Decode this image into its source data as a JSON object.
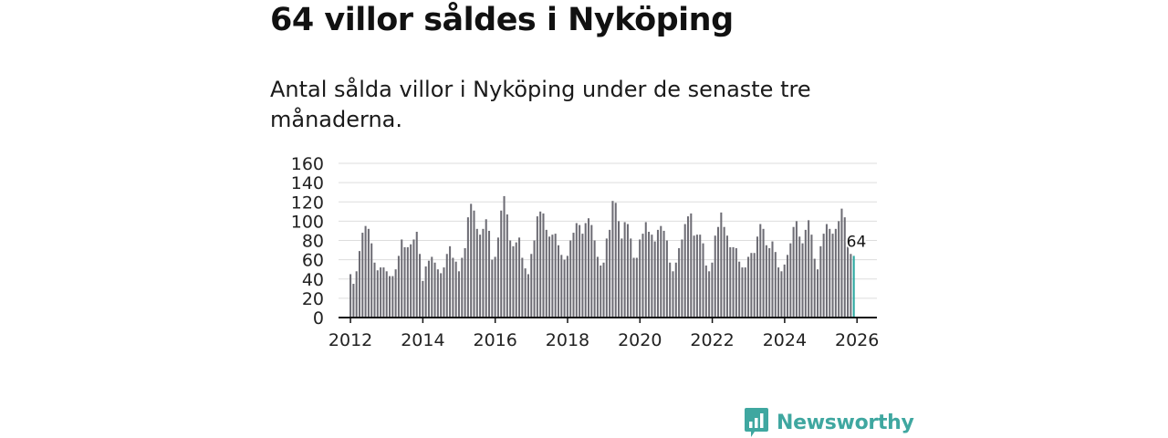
{
  "headline": "64 villor såldes i Nyköping",
  "subtitle": "Antal sålda villor i Nyköping under de senaste tre månaderna.",
  "brand": {
    "name": "Newsworthy",
    "color": "#3fa7a0"
  },
  "chart_data": {
    "type": "bar",
    "title": "",
    "xlabel": "",
    "ylabel": "",
    "ylim": [
      0,
      160
    ],
    "yticks": [
      "0",
      "20",
      "40",
      "60",
      "80",
      "100",
      "120",
      "140",
      "160"
    ],
    "xticks": [
      "2012",
      "2014",
      "2016",
      "2018",
      "2020",
      "2022",
      "2024",
      "2026"
    ],
    "x_start": 2012.0,
    "x_step": 0.0833,
    "values": [
      45,
      35,
      48,
      69,
      88,
      95,
      92,
      77,
      57,
      49,
      52,
      52,
      48,
      43,
      43,
      50,
      64,
      81,
      73,
      73,
      76,
      81,
      89,
      66,
      38,
      53,
      59,
      63,
      57,
      50,
      46,
      52,
      66,
      74,
      62,
      58,
      48,
      62,
      72,
      104,
      118,
      111,
      92,
      86,
      92,
      102,
      90,
      60,
      63,
      83,
      111,
      126,
      107,
      80,
      74,
      78,
      83,
      62,
      51,
      45,
      66,
      80,
      105,
      110,
      108,
      91,
      84,
      86,
      87,
      75,
      65,
      60,
      64,
      80,
      88,
      98,
      96,
      87,
      98,
      103,
      96,
      80,
      63,
      54,
      57,
      82,
      91,
      121,
      119,
      100,
      82,
      99,
      97,
      82,
      62,
      62,
      81,
      87,
      99,
      89,
      86,
      79,
      91,
      95,
      90,
      80,
      57,
      48,
      57,
      72,
      81,
      97,
      105,
      108,
      85,
      86,
      86,
      77,
      54,
      48,
      57,
      85,
      94,
      109,
      94,
      85,
      73,
      73,
      72,
      58,
      52,
      52,
      63,
      67,
      67,
      84,
      97,
      92,
      75,
      72,
      79,
      68,
      52,
      48,
      55,
      65,
      77,
      94,
      100,
      84,
      77,
      91,
      101,
      86,
      61,
      50,
      74,
      87,
      97,
      92,
      87,
      92,
      100,
      113,
      104,
      74,
      66,
      64
    ],
    "highlight_label": "64",
    "bar_color": "#6e6d75",
    "highlight_color": "#2aa8a0",
    "grid": true
  }
}
